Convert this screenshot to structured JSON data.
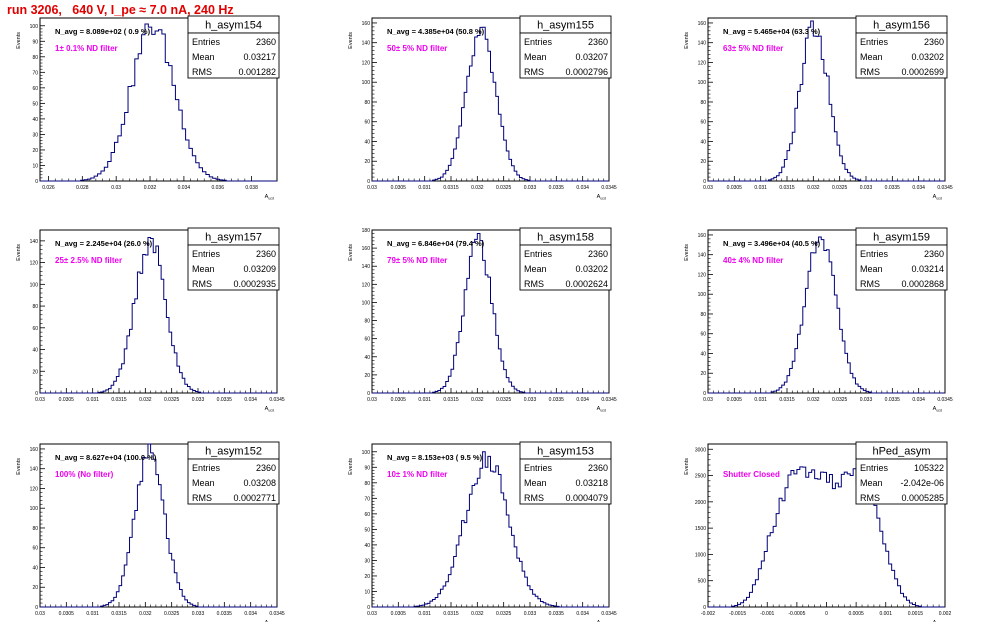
{
  "page": {
    "run_title": "run 3206,   640 V, I_pe ≈ 7.0 nA, 240 Hz"
  },
  "styles": {
    "title_color": "#e00000",
    "hist_color": "#00007a",
    "filter_label_color": "#ee00ee",
    "axis_color": "#000000"
  },
  "chart_data": [
    {
      "type": "histogram",
      "name": "h_asym154",
      "stats": {
        "entries_label": "Entries",
        "entries": "2360",
        "mean_label": "Mean",
        "mean": "0.03217",
        "rms_label": "RMS",
        "rms": "0.001282"
      },
      "navg": "N_avg = 8.089e+02 ( 0.9 %)",
      "filter": "1± 0.1% ND filter",
      "xlabel": "A_ucd",
      "ylabel": "Events",
      "xlim": [
        0.0255,
        0.0395
      ],
      "ylim": [
        0,
        105
      ],
      "xticks": [
        "0.026",
        "0.028",
        "0.03",
        "0.032",
        "0.034",
        "0.036",
        "0.038"
      ],
      "yticks": [
        "0",
        "10",
        "20",
        "30",
        "40",
        "50",
        "60",
        "70",
        "80",
        "90",
        "100"
      ],
      "shape": {
        "mu": 0.03217,
        "sigma": 0.00128,
        "peak": 100,
        "step": 0.0002
      }
    },
    {
      "type": "histogram",
      "name": "h_asym155",
      "stats": {
        "entries_label": "Entries",
        "entries": "2360",
        "mean_label": "Mean",
        "mean": "0.03207",
        "rms_label": "RMS",
        "rms": "0.0002796"
      },
      "navg": "N_avg = 4.385e+04 (50.8 %)",
      "filter": "50± 5% ND filter",
      "xlabel": "A_ucd",
      "ylabel": "Events",
      "xlim": [
        0.03,
        0.0345
      ],
      "ylim": [
        0,
        165
      ],
      "xticks": [
        "0.03",
        "0.0305",
        "0.031",
        "0.0315",
        "0.032",
        "0.0325",
        "0.033",
        "0.0335",
        "0.034",
        "0.0345"
      ],
      "yticks": [
        "0",
        "20",
        "40",
        "60",
        "80",
        "100",
        "120",
        "140",
        "160"
      ],
      "shape": {
        "mu": 0.03207,
        "sigma": 0.00028,
        "peak": 148,
        "step": 5e-05
      }
    },
    {
      "type": "histogram",
      "name": "h_asym156",
      "stats": {
        "entries_label": "Entries",
        "entries": "2360",
        "mean_label": "Mean",
        "mean": "0.03202",
        "rms_label": "RMS",
        "rms": "0.0002699"
      },
      "navg": "N_avg = 5.465e+04 (63.3 %)",
      "filter": "63± 5% ND filter",
      "xlabel": "A_ucd",
      "ylabel": "Events",
      "xlim": [
        0.03,
        0.0345
      ],
      "ylim": [
        0,
        165
      ],
      "xticks": [
        "0.03",
        "0.0305",
        "0.031",
        "0.0315",
        "0.032",
        "0.0325",
        "0.033",
        "0.0335",
        "0.034",
        "0.0345"
      ],
      "yticks": [
        "0",
        "20",
        "40",
        "60",
        "80",
        "100",
        "120",
        "140",
        "160"
      ],
      "shape": {
        "mu": 0.03202,
        "sigma": 0.00027,
        "peak": 155,
        "step": 5e-05
      }
    },
    {
      "type": "histogram",
      "name": "h_asym157",
      "stats": {
        "entries_label": "Entries",
        "entries": "2360",
        "mean_label": "Mean",
        "mean": "0.03209",
        "rms_label": "RMS",
        "rms": "0.0002935"
      },
      "navg": "N_avg = 2.245e+04 (26.0 %)",
      "filter": "25± 2.5% ND filter",
      "xlabel": "A_ucd",
      "ylabel": "Events",
      "xlim": [
        0.03,
        0.0345
      ],
      "ylim": [
        0,
        150
      ],
      "xticks": [
        "0.03",
        "0.0305",
        "0.031",
        "0.0315",
        "0.032",
        "0.0325",
        "0.033",
        "0.0335",
        "0.034",
        "0.0345"
      ],
      "yticks": [
        "0",
        "20",
        "40",
        "60",
        "80",
        "100",
        "120",
        "140"
      ],
      "shape": {
        "mu": 0.03209,
        "sigma": 0.00029,
        "peak": 140,
        "step": 5e-05
      }
    },
    {
      "type": "histogram",
      "name": "h_asym158",
      "stats": {
        "entries_label": "Entries",
        "entries": "2360",
        "mean_label": "Mean",
        "mean": "0.03202",
        "rms_label": "RMS",
        "rms": "0.0002624"
      },
      "navg": "N_avg = 6.846e+04 (79.4 %)",
      "filter": "79± 5% ND filter",
      "xlabel": "A_ucd",
      "ylabel": "Events",
      "xlim": [
        0.03,
        0.0345
      ],
      "ylim": [
        0,
        180
      ],
      "xticks": [
        "0.03",
        "0.0305",
        "0.031",
        "0.0315",
        "0.032",
        "0.0325",
        "0.033",
        "0.0335",
        "0.034",
        "0.0345"
      ],
      "yticks": [
        "0",
        "20",
        "40",
        "60",
        "80",
        "100",
        "120",
        "140",
        "160",
        "180"
      ],
      "shape": {
        "mu": 0.03202,
        "sigma": 0.00026,
        "peak": 168,
        "step": 5e-05
      }
    },
    {
      "type": "histogram",
      "name": "h_asym159",
      "stats": {
        "entries_label": "Entries",
        "entries": "2360",
        "mean_label": "Mean",
        "mean": "0.03214",
        "rms_label": "RMS",
        "rms": "0.0002868"
      },
      "navg": "N_avg = 3.496e+04 (40.5 %)",
      "filter": "40± 4% ND filter",
      "xlabel": "A_ucd",
      "ylabel": "Events",
      "xlim": [
        0.03,
        0.0345
      ],
      "ylim": [
        0,
        165
      ],
      "xticks": [
        "0.03",
        "0.0305",
        "0.031",
        "0.0315",
        "0.032",
        "0.0325",
        "0.033",
        "0.0335",
        "0.034",
        "0.0345"
      ],
      "yticks": [
        "0",
        "20",
        "40",
        "60",
        "80",
        "100",
        "120",
        "140",
        "160"
      ],
      "shape": {
        "mu": 0.03214,
        "sigma": 0.00029,
        "peak": 160,
        "step": 5e-05
      }
    },
    {
      "type": "histogram",
      "name": "h_asym152",
      "stats": {
        "entries_label": "Entries",
        "entries": "2360",
        "mean_label": "Mean",
        "mean": "0.03208",
        "rms_label": "RMS",
        "rms": "0.0002771"
      },
      "navg": "N_avg = 8.627e+04 (100.0 %)",
      "filter": "100% (No filter)",
      "xlabel": "A_ucd",
      "ylabel": "Events",
      "xlim": [
        0.03,
        0.0345
      ],
      "ylim": [
        0,
        165
      ],
      "xticks": [
        "0.03",
        "0.0305",
        "0.031",
        "0.0315",
        "0.032",
        "0.0325",
        "0.033",
        "0.0335",
        "0.034",
        "0.0345"
      ],
      "yticks": [
        "0",
        "20",
        "40",
        "60",
        "80",
        "100",
        "120",
        "140",
        "160"
      ],
      "shape": {
        "mu": 0.03208,
        "sigma": 0.00028,
        "peak": 158,
        "step": 5e-05
      }
    },
    {
      "type": "histogram",
      "name": "h_asym153",
      "stats": {
        "entries_label": "Entries",
        "entries": "2360",
        "mean_label": "Mean",
        "mean": "0.03218",
        "rms_label": "RMS",
        "rms": "0.0004079"
      },
      "navg": "N_avg = 8.153e+03 ( 9.5 %)",
      "filter": "10± 1% ND filter",
      "xlabel": "A_ucd",
      "ylabel": "Events",
      "xlim": [
        0.03,
        0.0345
      ],
      "ylim": [
        0,
        105
      ],
      "xticks": [
        "0.03",
        "0.0305",
        "0.031",
        "0.0315",
        "0.032",
        "0.0325",
        "0.033",
        "0.0335",
        "0.034",
        "0.0345"
      ],
      "yticks": [
        "0",
        "10",
        "20",
        "30",
        "40",
        "50",
        "60",
        "70",
        "80",
        "90",
        "100"
      ],
      "shape": {
        "mu": 0.03218,
        "sigma": 0.00041,
        "peak": 96,
        "step": 5e-05
      }
    },
    {
      "type": "histogram",
      "name": "hPed_asym",
      "stats": {
        "entries_label": "Entries",
        "entries": "105322",
        "mean_label": "Mean",
        "mean": "-2.042e-06",
        "rms_label": "RMS",
        "rms": "0.0005285"
      },
      "navg": "",
      "filter": "Shutter Closed",
      "xlabel": "A_ucd",
      "ylabel": "Events",
      "xlim": [
        -0.002,
        0.002
      ],
      "ylim": [
        0,
        3100
      ],
      "xticks": [
        "-0.002",
        "-0.0015",
        "-0.001",
        "-0.0005",
        "0",
        "0.0005",
        "0.001",
        "0.0015",
        "0.002"
      ],
      "yticks": [
        "0",
        "500",
        "1000",
        "1500",
        "2000",
        "2500",
        "3000"
      ],
      "shape": {
        "mu": -2e-06,
        "sigma": 0.00053,
        "peak": 2700,
        "step": 5e-05,
        "flat": true
      }
    }
  ]
}
